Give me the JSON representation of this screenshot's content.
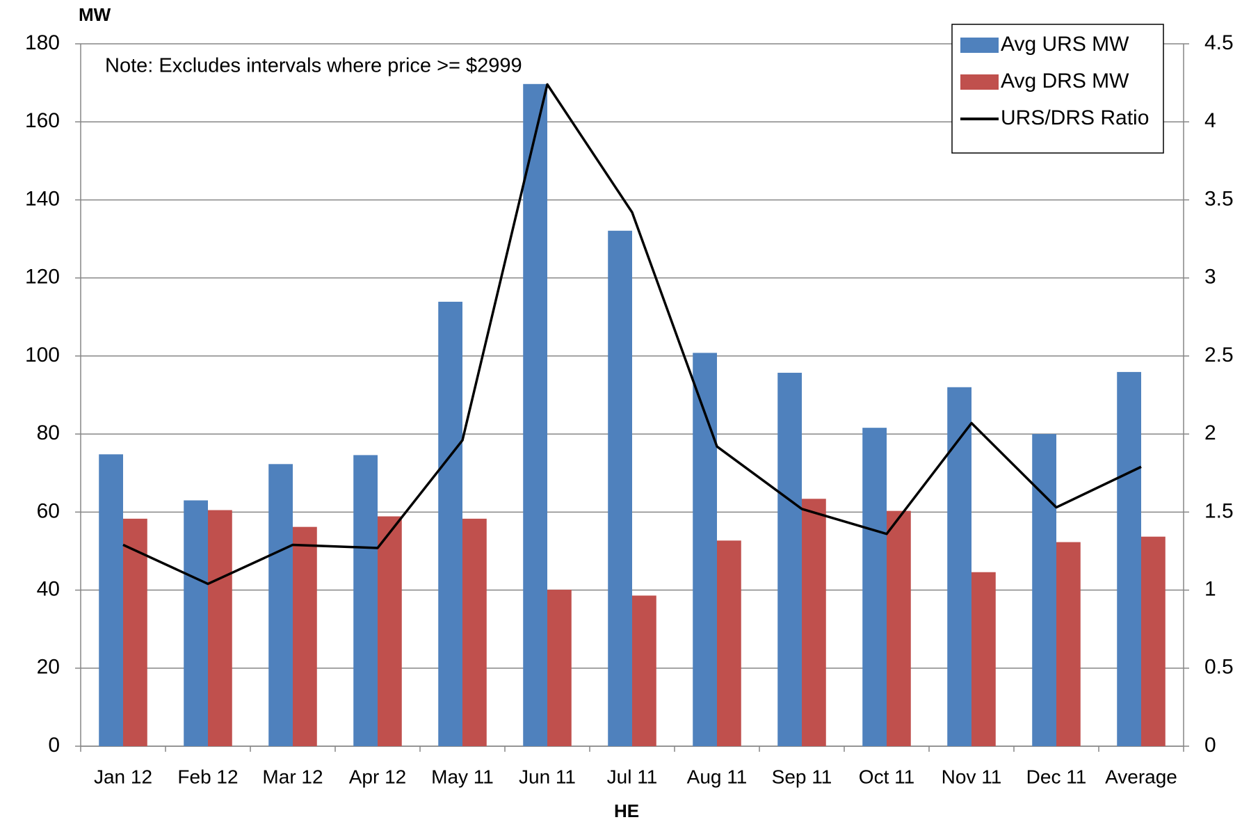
{
  "chart_data": {
    "type": "bar_line",
    "y_axis_label": "MW",
    "x_axis_label": "HE",
    "annotation": "Note: Excludes intervals where price >= $2999",
    "categories": [
      "Jan 12",
      "Feb 12",
      "Mar 12",
      "Apr 12",
      "May 11",
      "Jun 11",
      "Jul 11",
      "Aug 11",
      "Sep 11",
      "Oct 11",
      "Nov 11",
      "Dec 11",
      "Average"
    ],
    "series": [
      {
        "name": "Avg URS MW",
        "color": "#4f81bd",
        "type": "bar",
        "values": [
          74.8,
          63.0,
          72.3,
          74.6,
          113.9,
          169.7,
          132.1,
          100.8,
          95.7,
          81.6,
          92.0,
          80.0,
          95.9
        ]
      },
      {
        "name": "Avg DRS MW",
        "color": "#c0504d",
        "type": "bar",
        "values": [
          58.3,
          60.5,
          56.2,
          58.9,
          58.3,
          40.1,
          38.6,
          52.7,
          63.4,
          60.3,
          44.6,
          52.3,
          53.7
        ]
      },
      {
        "name": "URS/DRS Ratio",
        "color": "#000000",
        "type": "line",
        "axis": "y2",
        "values": [
          1.29,
          1.04,
          1.29,
          1.27,
          1.96,
          4.24,
          3.42,
          1.92,
          1.52,
          1.36,
          2.07,
          1.53,
          1.79
        ]
      }
    ],
    "ylim": [
      0,
      180
    ],
    "yticks": [
      0,
      20,
      40,
      60,
      80,
      100,
      120,
      140,
      160,
      180
    ],
    "y2lim": [
      0,
      4.5
    ],
    "y2ticks": [
      0,
      0.5,
      1,
      1.5,
      2,
      2.5,
      3,
      3.5,
      4,
      4.5
    ],
    "grid": true,
    "legend": "upper right"
  }
}
